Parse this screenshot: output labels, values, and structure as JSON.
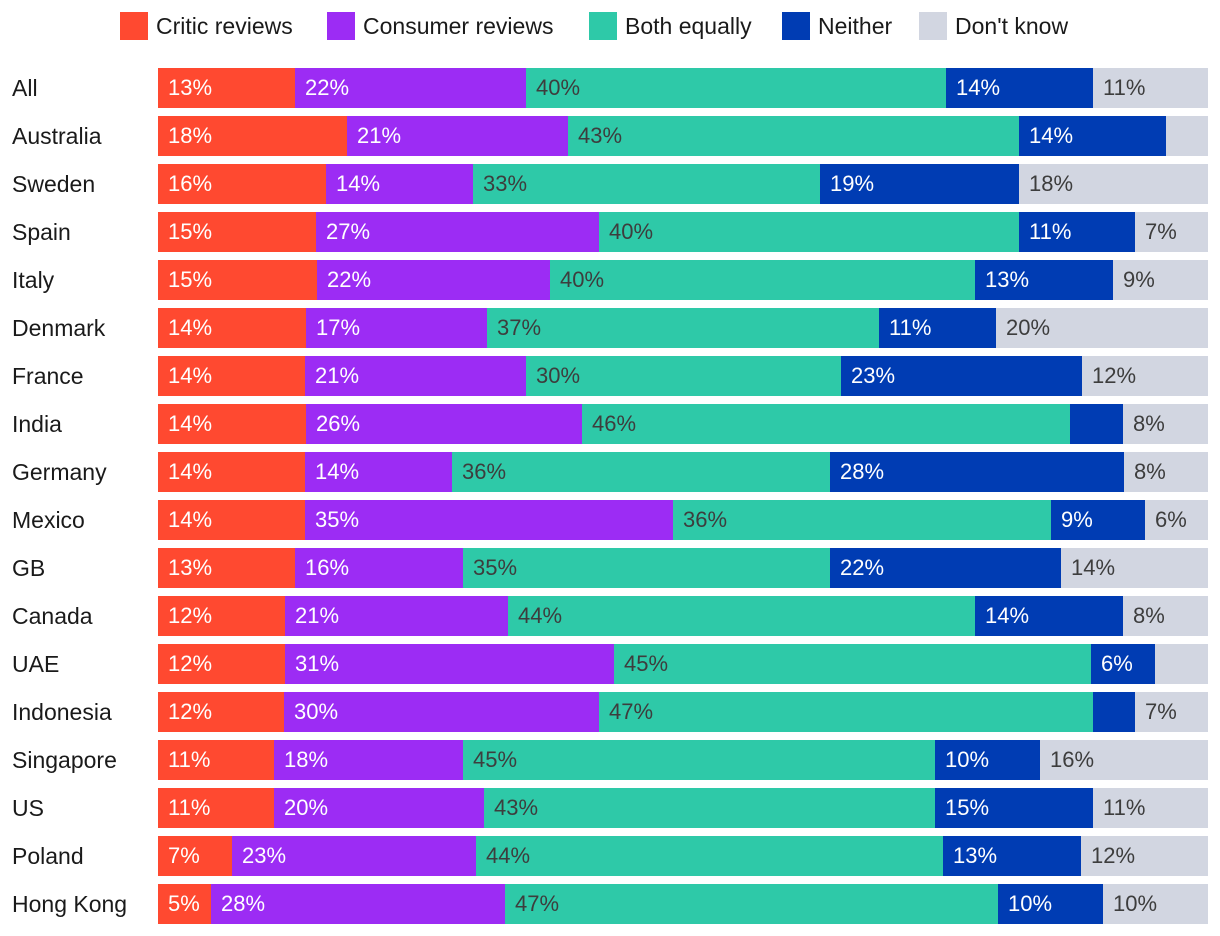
{
  "chart_data": {
    "type": "bar",
    "orientation": "horizontal",
    "stacked": true,
    "title": "",
    "legend_position": "top",
    "categories": [
      "All",
      "Australia",
      "Sweden",
      "Spain",
      "Italy",
      "Denmark",
      "France",
      "India",
      "Germany",
      "Mexico",
      "GB",
      "Canada",
      "UAE",
      "Indonesia",
      "Singapore",
      "US",
      "Poland",
      "Hong Kong"
    ],
    "series": [
      {
        "name": "Critic reviews",
        "color": "#ff4930",
        "label_style": "light",
        "values": [
          13,
          18,
          16,
          15,
          15,
          14,
          14,
          14,
          14,
          14,
          13,
          12,
          12,
          12,
          11,
          11,
          7,
          5
        ],
        "labels": [
          "13%",
          "18%",
          "16%",
          "15%",
          "15%",
          "14%",
          "14%",
          "14%",
          "14%",
          "14%",
          "13%",
          "12%",
          "12%",
          "12%",
          "11%",
          "11%",
          "7%",
          "5%"
        ]
      },
      {
        "name": "Consumer reviews",
        "color": "#9c2cf4",
        "label_style": "light",
        "values": [
          22,
          21,
          14,
          27,
          22,
          17,
          21,
          26,
          14,
          35,
          16,
          21,
          31,
          30,
          18,
          20,
          23,
          28
        ],
        "labels": [
          "22%",
          "21%",
          "14%",
          "27%",
          "22%",
          "17%",
          "21%",
          "26%",
          "14%",
          "35%",
          "16%",
          "21%",
          "31%",
          "30%",
          "18%",
          "20%",
          "23%",
          "28%"
        ]
      },
      {
        "name": "Both equally",
        "color": "#2ec9a8",
        "label_style": "dark",
        "values": [
          40,
          43,
          33,
          40,
          40,
          37,
          30,
          46,
          36,
          36,
          35,
          44,
          45,
          47,
          45,
          43,
          44,
          47
        ],
        "labels": [
          "40%",
          "43%",
          "33%",
          "40%",
          "40%",
          "37%",
          "30%",
          "46%",
          "36%",
          "36%",
          "35%",
          "44%",
          "45%",
          "47%",
          "45%",
          "43%",
          "44%",
          "47%"
        ]
      },
      {
        "name": "Neither",
        "color": "#003cb3",
        "label_style": "light",
        "values": [
          14,
          14,
          19,
          11,
          13,
          11,
          23,
          5,
          28,
          9,
          22,
          14,
          6,
          4,
          10,
          15,
          13,
          10
        ],
        "labels": [
          "14%",
          "14%",
          "19%",
          "11%",
          "13%",
          "11%",
          "23%",
          "",
          "28%",
          "9%",
          "22%",
          "14%",
          "6%",
          "",
          "10%",
          "15%",
          "13%",
          "10%"
        ]
      },
      {
        "name": "Don't know",
        "color": "#d2d6e1",
        "label_style": "dark",
        "values": [
          11,
          4,
          18,
          7,
          9,
          20,
          12,
          8,
          8,
          6,
          14,
          8,
          5,
          7,
          16,
          11,
          12,
          10
        ],
        "labels": [
          "11%",
          "",
          "18%",
          "7%",
          "9%",
          "20%",
          "12%",
          "8%",
          "8%",
          "6%",
          "14%",
          "8%",
          "",
          "7%",
          "16%",
          "11%",
          "12%",
          "10%"
        ]
      }
    ]
  }
}
